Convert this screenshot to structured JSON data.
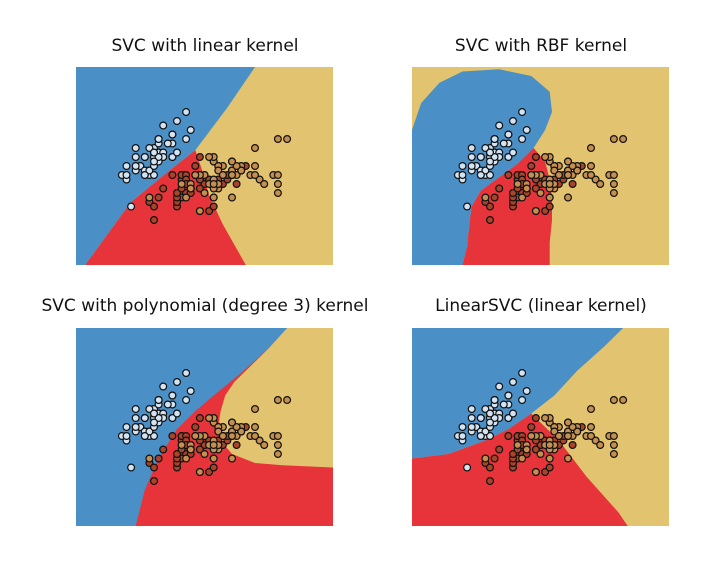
{
  "chart_data": [
    {
      "type": "scatter",
      "title": "SVC with linear kernel",
      "kernel": "linear",
      "region_colors": [
        "#4a8fc5",
        "#e6343a",
        "#e2c36f"
      ],
      "point_colors": [
        "#d4e3f1",
        "#a8442a",
        "#c58f4f"
      ]
    },
    {
      "type": "scatter",
      "title": "SVC with RBF kernel",
      "kernel": "rbf",
      "region_colors": [
        "#4a8fc5",
        "#e6343a",
        "#e2c36f"
      ],
      "point_colors": [
        "#d4e3f1",
        "#a8442a",
        "#c58f4f"
      ]
    },
    {
      "type": "scatter",
      "title": "SVC with polynomial (degree 3) kernel",
      "kernel": "poly",
      "region_colors": [
        "#4a8fc5",
        "#e6343a",
        "#e2c36f"
      ],
      "point_colors": [
        "#d4e3f1",
        "#a8442a",
        "#c58f4f"
      ]
    },
    {
      "type": "scatter",
      "title": "LinearSVC (linear kernel)",
      "kernel": "linearsvc",
      "region_colors": [
        "#4a8fc5",
        "#e6343a",
        "#e2c36f"
      ],
      "point_colors": [
        "#d4e3f1",
        "#a8442a",
        "#c58f4f"
      ]
    }
  ],
  "shared": {
    "xlim": [
      3.3,
      8.9
    ],
    "ylim": [
      1.0,
      5.4
    ],
    "axes_visible": false,
    "points": {
      "class0": [
        [
          5.1,
          3.5
        ],
        [
          4.9,
          3.0
        ],
        [
          4.7,
          3.2
        ],
        [
          4.6,
          3.1
        ],
        [
          5.0,
          3.6
        ],
        [
          5.4,
          3.9
        ],
        [
          4.6,
          3.4
        ],
        [
          5.0,
          3.4
        ],
        [
          4.4,
          2.9
        ],
        [
          4.9,
          3.1
        ],
        [
          5.4,
          3.7
        ],
        [
          4.8,
          3.4
        ],
        [
          4.8,
          3.0
        ],
        [
          4.3,
          3.0
        ],
        [
          5.8,
          4.0
        ],
        [
          5.7,
          4.4
        ],
        [
          5.4,
          3.9
        ],
        [
          5.1,
          3.5
        ],
        [
          5.7,
          3.8
        ],
        [
          5.1,
          3.8
        ],
        [
          5.4,
          3.4
        ],
        [
          5.1,
          3.7
        ],
        [
          4.6,
          3.6
        ],
        [
          5.1,
          3.3
        ],
        [
          4.8,
          3.4
        ],
        [
          5.0,
          3.0
        ],
        [
          5.0,
          3.4
        ],
        [
          5.2,
          3.5
        ],
        [
          5.2,
          3.4
        ],
        [
          4.7,
          3.2
        ],
        [
          4.8,
          3.1
        ],
        [
          5.4,
          3.4
        ],
        [
          5.2,
          4.1
        ],
        [
          5.5,
          4.2
        ],
        [
          4.9,
          3.1
        ],
        [
          5.0,
          3.2
        ],
        [
          5.5,
          3.5
        ],
        [
          4.9,
          3.6
        ],
        [
          4.4,
          3.0
        ],
        [
          5.1,
          3.4
        ],
        [
          5.0,
          3.5
        ],
        [
          4.5,
          2.3
        ],
        [
          4.4,
          3.2
        ],
        [
          5.0,
          3.5
        ],
        [
          5.1,
          3.8
        ],
        [
          4.8,
          3.0
        ],
        [
          5.1,
          3.8
        ],
        [
          4.6,
          3.2
        ],
        [
          5.3,
          3.7
        ],
        [
          5.0,
          3.3
        ]
      ],
      "class1": [
        [
          7.0,
          3.2
        ],
        [
          6.4,
          3.2
        ],
        [
          6.9,
          3.1
        ],
        [
          5.5,
          2.3
        ],
        [
          6.5,
          2.8
        ],
        [
          5.7,
          2.8
        ],
        [
          6.3,
          3.3
        ],
        [
          4.9,
          2.4
        ],
        [
          6.6,
          2.9
        ],
        [
          5.2,
          2.7
        ],
        [
          5.0,
          2.0
        ],
        [
          5.9,
          3.0
        ],
        [
          6.0,
          2.2
        ],
        [
          6.1,
          2.9
        ],
        [
          5.6,
          2.9
        ],
        [
          6.7,
          3.1
        ],
        [
          5.6,
          3.0
        ],
        [
          5.8,
          2.7
        ],
        [
          6.2,
          2.2
        ],
        [
          5.6,
          2.5
        ],
        [
          5.9,
          3.2
        ],
        [
          6.1,
          2.8
        ],
        [
          6.3,
          2.5
        ],
        [
          6.1,
          2.8
        ],
        [
          6.4,
          2.9
        ],
        [
          6.6,
          3.0
        ],
        [
          6.8,
          2.8
        ],
        [
          6.7,
          3.0
        ],
        [
          6.0,
          2.9
        ],
        [
          5.7,
          2.6
        ],
        [
          5.5,
          2.4
        ],
        [
          5.5,
          2.4
        ],
        [
          5.8,
          2.7
        ],
        [
          6.0,
          2.7
        ],
        [
          5.4,
          3.0
        ],
        [
          6.0,
          3.4
        ],
        [
          6.7,
          3.1
        ],
        [
          6.3,
          2.3
        ],
        [
          5.6,
          3.0
        ],
        [
          5.5,
          2.5
        ],
        [
          5.5,
          2.6
        ],
        [
          6.1,
          3.0
        ],
        [
          5.8,
          2.6
        ],
        [
          5.0,
          2.3
        ],
        [
          5.6,
          2.7
        ],
        [
          5.7,
          3.0
        ],
        [
          5.7,
          2.9
        ],
        [
          6.2,
          2.9
        ],
        [
          5.1,
          2.5
        ],
        [
          5.7,
          2.8
        ]
      ],
      "class2": [
        [
          6.3,
          3.3
        ],
        [
          5.8,
          2.7
        ],
        [
          7.1,
          3.0
        ],
        [
          6.3,
          2.9
        ],
        [
          6.5,
          3.0
        ],
        [
          7.6,
          3.0
        ],
        [
          4.9,
          2.5
        ],
        [
          7.3,
          2.9
        ],
        [
          6.7,
          2.5
        ],
        [
          7.2,
          3.6
        ],
        [
          6.5,
          3.2
        ],
        [
          6.4,
          2.7
        ],
        [
          6.8,
          3.0
        ],
        [
          5.7,
          2.5
        ],
        [
          5.8,
          2.8
        ],
        [
          6.4,
          3.2
        ],
        [
          6.5,
          3.0
        ],
        [
          7.7,
          3.8
        ],
        [
          7.7,
          2.6
        ],
        [
          6.0,
          2.2
        ],
        [
          6.9,
          3.2
        ],
        [
          5.6,
          2.8
        ],
        [
          7.7,
          2.8
        ],
        [
          6.3,
          2.7
        ],
        [
          6.7,
          3.3
        ],
        [
          7.2,
          3.2
        ],
        [
          6.2,
          2.8
        ],
        [
          6.1,
          3.0
        ],
        [
          6.4,
          2.8
        ],
        [
          7.2,
          3.0
        ],
        [
          7.4,
          2.8
        ],
        [
          7.9,
          3.8
        ],
        [
          6.4,
          2.8
        ],
        [
          6.3,
          2.8
        ],
        [
          6.1,
          2.6
        ],
        [
          7.7,
          3.0
        ],
        [
          6.3,
          3.4
        ],
        [
          6.4,
          3.1
        ],
        [
          6.0,
          3.0
        ],
        [
          6.9,
          3.1
        ],
        [
          6.7,
          3.1
        ],
        [
          6.9,
          3.1
        ],
        [
          5.8,
          2.7
        ],
        [
          6.8,
          3.2
        ],
        [
          6.7,
          3.3
        ],
        [
          6.7,
          3.0
        ],
        [
          6.3,
          2.5
        ],
        [
          6.5,
          3.0
        ],
        [
          6.2,
          3.4
        ],
        [
          5.9,
          3.0
        ]
      ]
    }
  }
}
